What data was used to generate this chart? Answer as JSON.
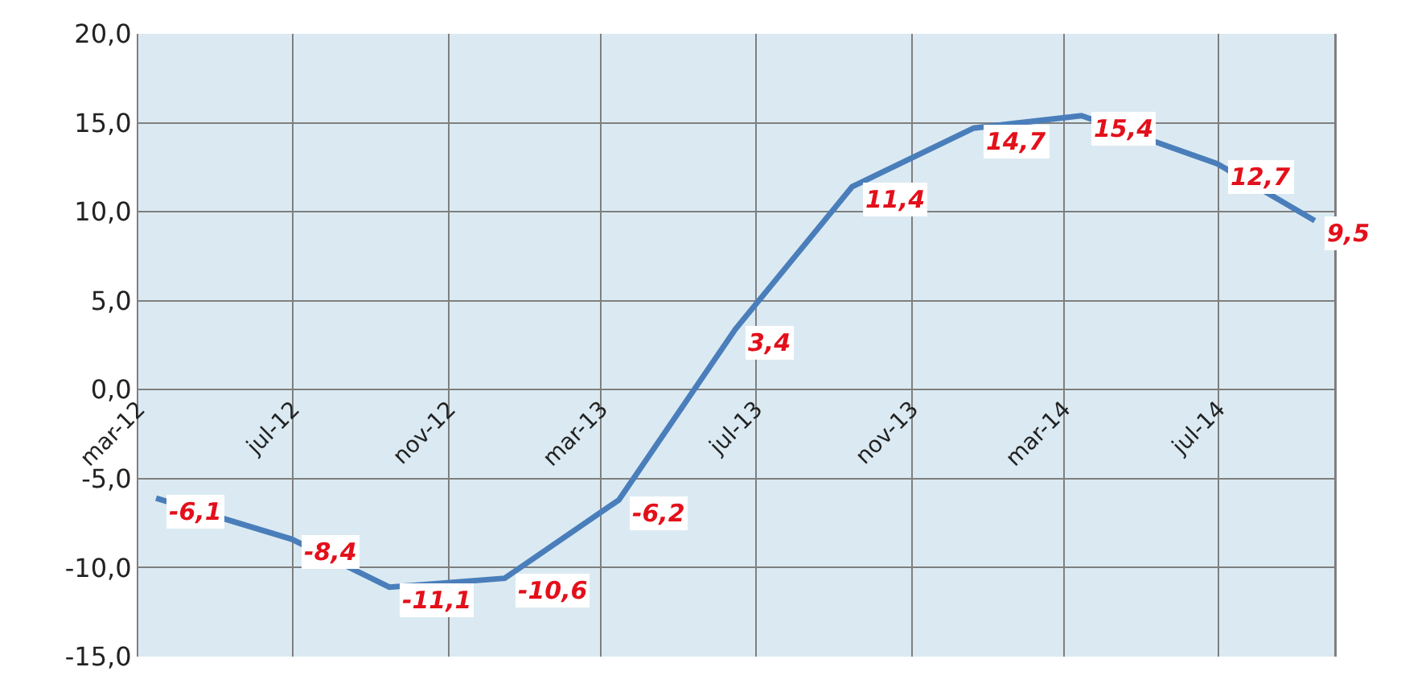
{
  "chart_data": {
    "type": "line",
    "x": [
      "2012-03-15",
      "2012-06-30",
      "2012-09-15",
      "2012-12-15",
      "2013-03-15",
      "2013-06-15",
      "2013-09-15",
      "2013-12-20",
      "2014-03-15",
      "2014-06-30",
      "2014-09-15"
    ],
    "series": [
      {
        "color": "#4a7ebb",
        "values": [
          -6.1,
          -8.4,
          -11.1,
          -10.6,
          -6.2,
          3.4,
          11.4,
          14.7,
          15.4,
          12.7,
          9.5
        ],
        "value_labels": [
          "-6,1",
          "-8,4",
          "-11,1",
          "-10,6",
          "-6,2",
          "3,4",
          "11,4",
          "14,7",
          "15,4",
          "12,7",
          "9,5"
        ]
      }
    ],
    "xlim": [
      "2012-03-01",
      "2014-10-01"
    ],
    "xticks": [
      {
        "value": "2012-03-01",
        "label": "mar-12"
      },
      {
        "value": "2012-07-01",
        "label": "jul-12"
      },
      {
        "value": "2012-11-01",
        "label": "nov-12"
      },
      {
        "value": "2013-03-01",
        "label": "mar-13"
      },
      {
        "value": "2013-07-01",
        "label": "jul-13"
      },
      {
        "value": "2013-11-01",
        "label": "nov-13"
      },
      {
        "value": "2014-03-01",
        "label": "mar-14"
      },
      {
        "value": "2014-07-01",
        "label": "jul-14"
      }
    ],
    "ylim": [
      -15,
      20
    ],
    "yticks": [
      {
        "value": -15,
        "label": "-15,0"
      },
      {
        "value": -10,
        "label": "-10,0"
      },
      {
        "value": -5,
        "label": "-5,0"
      },
      {
        "value": 0,
        "label": "0,0"
      },
      {
        "value": 5,
        "label": "5,0"
      },
      {
        "value": 10,
        "label": "10,0"
      },
      {
        "value": 15,
        "label": "15,0"
      },
      {
        "value": 20,
        "label": "20,0"
      }
    ],
    "grid": true,
    "marker": "none",
    "line_style": "solid"
  }
}
